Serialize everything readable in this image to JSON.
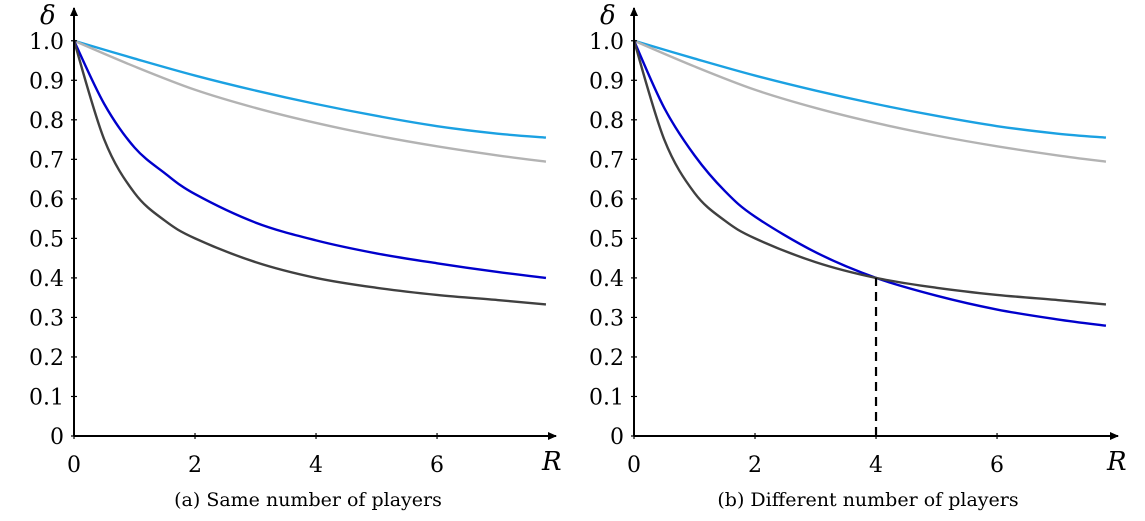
{
  "chart_data": [
    {
      "type": "line",
      "title": "",
      "caption": "(a) Same number of players",
      "xlabel": "R",
      "ylabel": "δ",
      "xlim": [
        0,
        7.9
      ],
      "ylim": [
        0,
        1.05
      ],
      "xticks": [
        0,
        2,
        4,
        6
      ],
      "xtick_labels": [
        "0",
        "2",
        "4",
        "6"
      ],
      "yticks": [
        0,
        0.1,
        0.2,
        0.3,
        0.4,
        0.5,
        0.6,
        0.7,
        0.8,
        0.9,
        1.0
      ],
      "ytick_labels": [
        "0",
        "0.1",
        "0.2",
        "0.3",
        "0.4",
        "0.5",
        "0.6",
        "0.7",
        "0.8",
        "0.9",
        "1.0"
      ],
      "grid": false,
      "legend": "none",
      "series": [
        {
          "color": "#1ba1e2",
          "x": [
            0,
            1,
            2,
            3,
            4,
            5,
            6,
            7,
            7.8
          ],
          "y": [
            1.0,
            0.955,
            0.912,
            0.874,
            0.84,
            0.81,
            0.784,
            0.765,
            0.755
          ]
        },
        {
          "color": "#b3b3b3",
          "x": [
            0,
            1,
            2,
            3,
            4,
            5,
            6,
            7,
            7.8
          ],
          "y": [
            1.0,
            0.935,
            0.876,
            0.83,
            0.792,
            0.76,
            0.733,
            0.71,
            0.694
          ]
        },
        {
          "color": "#0000cc",
          "x": [
            0,
            0.5,
            1,
            1.5,
            2,
            3,
            4,
            5,
            6,
            7,
            7.8
          ],
          "y": [
            1.0,
            0.84,
            0.73,
            0.665,
            0.612,
            0.54,
            0.495,
            0.462,
            0.437,
            0.415,
            0.4
          ]
        },
        {
          "color": "#404040",
          "x": [
            0,
            0.5,
            1,
            1.5,
            2,
            3,
            4,
            5,
            6,
            7,
            7.8
          ],
          "y": [
            1.0,
            0.75,
            0.615,
            0.545,
            0.5,
            0.44,
            0.4,
            0.375,
            0.357,
            0.344,
            0.333
          ]
        }
      ]
    },
    {
      "type": "line",
      "title": "",
      "caption": "(b) Different number of players",
      "xlabel": "R",
      "ylabel": "δ",
      "xlim": [
        0,
        7.9
      ],
      "ylim": [
        0,
        1.05
      ],
      "xticks": [
        0,
        2,
        4,
        6
      ],
      "xtick_labels": [
        "0",
        "2",
        "4",
        "6"
      ],
      "yticks": [
        0,
        0.1,
        0.2,
        0.3,
        0.4,
        0.5,
        0.6,
        0.7,
        0.8,
        0.9,
        1.0
      ],
      "ytick_labels": [
        "0",
        "0.1",
        "0.2",
        "0.3",
        "0.4",
        "0.5",
        "0.6",
        "0.7",
        "0.8",
        "0.9",
        "1.0"
      ],
      "grid": false,
      "legend": "none",
      "series": [
        {
          "color": "#1ba1e2",
          "x": [
            0,
            1,
            2,
            3,
            4,
            5,
            6,
            7,
            7.8
          ],
          "y": [
            1.0,
            0.955,
            0.912,
            0.874,
            0.84,
            0.81,
            0.784,
            0.765,
            0.755
          ]
        },
        {
          "color": "#b3b3b3",
          "x": [
            0,
            1,
            2,
            3,
            4,
            5,
            6,
            7,
            7.8
          ],
          "y": [
            1.0,
            0.935,
            0.876,
            0.83,
            0.792,
            0.76,
            0.733,
            0.71,
            0.694
          ]
        },
        {
          "color": "#0000cc",
          "x": [
            0,
            0.5,
            1,
            1.5,
            2,
            3,
            4,
            5,
            6,
            7,
            7.8
          ],
          "y": [
            1.0,
            0.83,
            0.71,
            0.62,
            0.555,
            0.465,
            0.4,
            0.355,
            0.32,
            0.295,
            0.279
          ]
        },
        {
          "color": "#404040",
          "x": [
            0,
            0.5,
            1,
            1.5,
            2,
            3,
            4,
            5,
            6,
            7,
            7.8
          ],
          "y": [
            1.0,
            0.75,
            0.615,
            0.545,
            0.5,
            0.44,
            0.4,
            0.375,
            0.357,
            0.344,
            0.333
          ]
        }
      ],
      "annotations": [
        {
          "type": "dashed-vertical-line",
          "x": 4,
          "y_from": 0,
          "y_to": 0.4,
          "color": "#000000"
        }
      ]
    }
  ]
}
